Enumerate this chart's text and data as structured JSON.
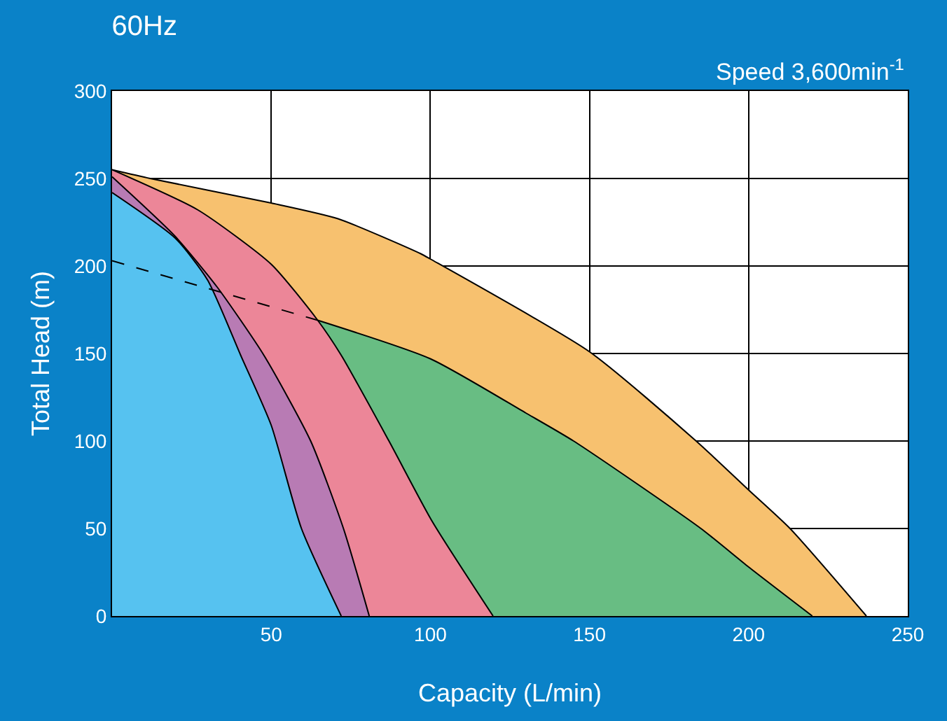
{
  "chart_data": {
    "type": "area",
    "title": "60Hz",
    "xlabel": "Capacity (L/min)",
    "ylabel": "Total Head (m)",
    "annotations": [
      "Speed 3,600min$^{-1}$"
    ],
    "xlim": [
      0,
      250
    ],
    "xticks": [
      50,
      100,
      150,
      200,
      250
    ],
    "ylim": [
      0,
      300
    ],
    "yticks": [
      0,
      50,
      100,
      150,
      200,
      250,
      300
    ],
    "grid": true,
    "marker": "none",
    "series": [
      {
        "color": "#f7c16f",
        "x": [
          0,
          12,
          50,
          71,
          97,
          100,
          150,
          183.5,
          200,
          213,
          237
        ],
        "values": [
          255,
          250,
          236,
          227,
          207,
          204,
          151,
          100,
          72,
          50,
          0
        ]
      },
      {
        "color": "#68bd83",
        "x": [
          64.6,
          100,
          130,
          145,
          185,
          200,
          220
        ],
        "values": [
          169,
          147,
          116,
          100,
          50,
          28,
          0
        ]
      },
      {
        "color": "#ec8698",
        "x": [
          0,
          27,
          50,
          64.6,
          72,
          87,
          100.6,
          119.7
        ],
        "values": [
          255,
          232,
          201,
          169,
          149,
          100,
          54,
          0
        ]
      },
      {
        "color": "#b87bb4",
        "x": [
          0,
          19.8,
          33,
          47.7,
          62.4,
          72.7,
          80.8
        ],
        "values": [
          251,
          217,
          188,
          149,
          100,
          50,
          0
        ]
      },
      {
        "color": "#56c2f0",
        "x": [
          0,
          19.8,
          30,
          40.4,
          50,
          59.5,
          72
        ],
        "values": [
          242,
          216,
          192,
          149,
          109,
          50,
          0
        ]
      },
      {
        "type": "line",
        "line_style": "dashed",
        "color": "#000000",
        "x": [
          0,
          64.6
        ],
        "values": [
          203,
          169
        ]
      }
    ]
  }
}
